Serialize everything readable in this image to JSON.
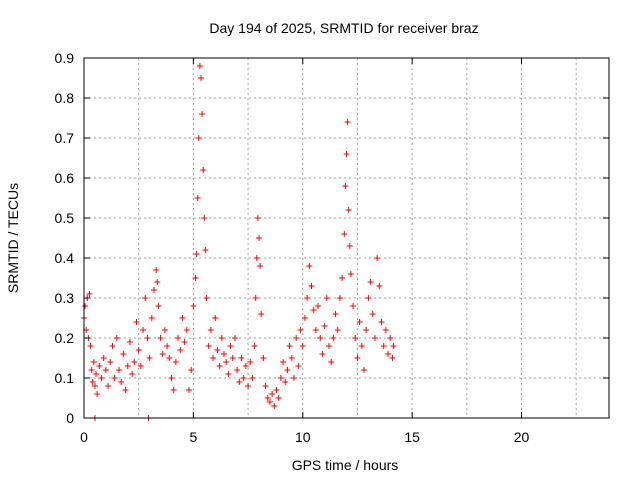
{
  "chart_data": {
    "type": "scatter",
    "title": "Day 194 of 2025, SRMTID for receiver braz",
    "xlabel": "GPS time / hours",
    "ylabel": "SRMTID / TECUs",
    "xlim": [
      0,
      24
    ],
    "ylim": [
      0,
      0.9
    ],
    "xticks": [
      0,
      5,
      10,
      15,
      20
    ],
    "xtick_labels": [
      "0",
      "5",
      "10",
      "15",
      "20"
    ],
    "yticks": [
      0,
      0.1,
      0.2,
      0.3,
      0.4,
      0.5,
      0.6,
      0.7,
      0.8,
      0.9
    ],
    "ytick_labels": [
      "0",
      "0.1",
      "0.2",
      "0.3",
      "0.4",
      "0.5",
      "0.6",
      "0.7",
      "0.8",
      "0.9"
    ],
    "grid": true,
    "marker": "plus",
    "color": "#ff0000",
    "series": [
      {
        "name": "SRMTID",
        "points": [
          [
            0.0,
            0.25
          ],
          [
            0.05,
            0.28
          ],
          [
            0.1,
            0.22
          ],
          [
            0.15,
            0.3
          ],
          [
            0.2,
            0.2
          ],
          [
            0.25,
            0.31
          ],
          [
            0.3,
            0.18
          ],
          [
            0.35,
            0.12
          ],
          [
            0.4,
            0.09
          ],
          [
            0.45,
            0.14
          ],
          [
            0.5,
            0.08
          ],
          [
            0.5,
            0.0
          ],
          [
            0.55,
            0.11
          ],
          [
            0.6,
            0.06
          ],
          [
            0.7,
            0.13
          ],
          [
            0.8,
            0.1
          ],
          [
            0.9,
            0.15
          ],
          [
            1.0,
            0.12
          ],
          [
            1.1,
            0.08
          ],
          [
            1.2,
            0.14
          ],
          [
            1.3,
            0.18
          ],
          [
            1.4,
            0.1
          ],
          [
            1.5,
            0.2
          ],
          [
            1.6,
            0.12
          ],
          [
            1.7,
            0.09
          ],
          [
            1.8,
            0.16
          ],
          [
            1.9,
            0.07
          ],
          [
            2.0,
            0.13
          ],
          [
            2.1,
            0.19
          ],
          [
            2.2,
            0.11
          ],
          [
            2.3,
            0.14
          ],
          [
            2.4,
            0.24
          ],
          [
            2.5,
            0.17
          ],
          [
            2.6,
            0.13
          ],
          [
            2.7,
            0.22
          ],
          [
            2.8,
            0.3
          ],
          [
            2.9,
            0.2
          ],
          [
            2.95,
            0.0
          ],
          [
            3.0,
            0.15
          ],
          [
            3.1,
            0.25
          ],
          [
            3.2,
            0.32
          ],
          [
            3.3,
            0.37
          ],
          [
            3.35,
            0.34
          ],
          [
            3.4,
            0.28
          ],
          [
            3.5,
            0.2
          ],
          [
            3.6,
            0.16
          ],
          [
            3.7,
            0.22
          ],
          [
            3.8,
            0.18
          ],
          [
            3.9,
            0.15
          ],
          [
            4.0,
            0.1
          ],
          [
            4.1,
            0.07
          ],
          [
            4.2,
            0.14
          ],
          [
            4.3,
            0.2
          ],
          [
            4.4,
            0.17
          ],
          [
            4.5,
            0.25
          ],
          [
            4.6,
            0.19
          ],
          [
            4.7,
            0.22
          ],
          [
            4.8,
            0.07
          ],
          [
            4.9,
            0.12
          ],
          [
            5.0,
            0.28
          ],
          [
            5.1,
            0.35
          ],
          [
            5.15,
            0.41
          ],
          [
            5.2,
            0.55
          ],
          [
            5.25,
            0.7
          ],
          [
            5.3,
            0.88
          ],
          [
            5.35,
            0.85
          ],
          [
            5.4,
            0.76
          ],
          [
            5.45,
            0.62
          ],
          [
            5.5,
            0.5
          ],
          [
            5.55,
            0.42
          ],
          [
            5.6,
            0.3
          ],
          [
            5.7,
            0.18
          ],
          [
            5.8,
            0.22
          ],
          [
            5.9,
            0.15
          ],
          [
            6.0,
            0.25
          ],
          [
            6.1,
            0.17
          ],
          [
            6.2,
            0.13
          ],
          [
            6.3,
            0.2
          ],
          [
            6.4,
            0.16
          ],
          [
            6.5,
            0.14
          ],
          [
            6.6,
            0.11
          ],
          [
            6.7,
            0.18
          ],
          [
            6.8,
            0.15
          ],
          [
            6.9,
            0.2
          ],
          [
            7.0,
            0.12
          ],
          [
            7.1,
            0.09
          ],
          [
            7.2,
            0.15
          ],
          [
            7.3,
            0.1
          ],
          [
            7.4,
            0.13
          ],
          [
            7.5,
            0.08
          ],
          [
            7.6,
            0.14
          ],
          [
            7.7,
            0.1
          ],
          [
            7.8,
            0.18
          ],
          [
            7.85,
            0.3
          ],
          [
            7.9,
            0.4
          ],
          [
            7.95,
            0.5
          ],
          [
            8.0,
            0.45
          ],
          [
            8.05,
            0.38
          ],
          [
            8.1,
            0.26
          ],
          [
            8.2,
            0.15
          ],
          [
            8.3,
            0.08
          ],
          [
            8.4,
            0.05
          ],
          [
            8.5,
            0.04
          ],
          [
            8.6,
            0.06
          ],
          [
            8.7,
            0.03
          ],
          [
            8.8,
            0.07
          ],
          [
            8.9,
            0.05
          ],
          [
            9.0,
            0.1
          ],
          [
            9.1,
            0.14
          ],
          [
            9.2,
            0.09
          ],
          [
            9.3,
            0.12
          ],
          [
            9.4,
            0.18
          ],
          [
            9.5,
            0.15
          ],
          [
            9.6,
            0.1
          ],
          [
            9.7,
            0.2
          ],
          [
            9.8,
            0.13
          ],
          [
            9.9,
            0.22
          ],
          [
            10.0,
            0.18
          ],
          [
            10.1,
            0.25
          ],
          [
            10.2,
            0.3
          ],
          [
            10.3,
            0.38
          ],
          [
            10.4,
            0.33
          ],
          [
            10.5,
            0.27
          ],
          [
            10.6,
            0.22
          ],
          [
            10.7,
            0.28
          ],
          [
            10.8,
            0.2
          ],
          [
            10.9,
            0.16
          ],
          [
            11.0,
            0.23
          ],
          [
            11.1,
            0.3
          ],
          [
            11.2,
            0.18
          ],
          [
            11.3,
            0.14
          ],
          [
            11.4,
            0.2
          ],
          [
            11.5,
            0.26
          ],
          [
            11.6,
            0.22
          ],
          [
            11.7,
            0.3
          ],
          [
            11.8,
            0.35
          ],
          [
            11.9,
            0.46
          ],
          [
            11.95,
            0.58
          ],
          [
            12.0,
            0.66
          ],
          [
            12.05,
            0.74
          ],
          [
            12.1,
            0.52
          ],
          [
            12.15,
            0.43
          ],
          [
            12.2,
            0.36
          ],
          [
            12.3,
            0.28
          ],
          [
            12.4,
            0.2
          ],
          [
            12.5,
            0.15
          ],
          [
            12.6,
            0.24
          ],
          [
            12.7,
            0.18
          ],
          [
            12.8,
            0.12
          ],
          [
            12.9,
            0.22
          ],
          [
            13.0,
            0.3
          ],
          [
            13.1,
            0.34
          ],
          [
            13.2,
            0.26
          ],
          [
            13.3,
            0.2
          ],
          [
            13.4,
            0.4
          ],
          [
            13.5,
            0.33
          ],
          [
            13.6,
            0.24
          ],
          [
            13.7,
            0.18
          ],
          [
            13.8,
            0.22
          ],
          [
            13.9,
            0.16
          ],
          [
            14.0,
            0.2
          ],
          [
            14.1,
            0.15
          ],
          [
            14.15,
            0.18
          ]
        ]
      }
    ]
  }
}
